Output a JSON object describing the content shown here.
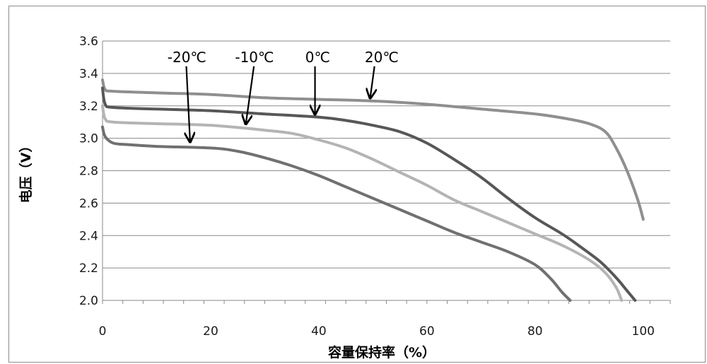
{
  "chart_data": {
    "type": "line",
    "title": "",
    "xlabel": "容量保持率（%）",
    "ylabel": "电压（V）",
    "xlim": [
      0,
      105
    ],
    "ylim": [
      2.0,
      3.6
    ],
    "x_ticks": [
      "0",
      "20",
      "40",
      "60",
      "80",
      "100"
    ],
    "y_ticks": [
      "2.0",
      "2.2",
      "2.4",
      "2.6",
      "2.8",
      "3.0",
      "3.2",
      "3.4",
      "3.6"
    ],
    "grid": "horizontal",
    "series": [
      {
        "name": "20℃",
        "color": "#8f8f8f",
        "points": [
          [
            0,
            3.36
          ],
          [
            0.5,
            3.3
          ],
          [
            2,
            3.29
          ],
          [
            10,
            3.28
          ],
          [
            20,
            3.27
          ],
          [
            30,
            3.25
          ],
          [
            40,
            3.24
          ],
          [
            50,
            3.23
          ],
          [
            60,
            3.21
          ],
          [
            70,
            3.18
          ],
          [
            80,
            3.15
          ],
          [
            86,
            3.12
          ],
          [
            90,
            3.09
          ],
          [
            93,
            3.04
          ],
          [
            95,
            2.94
          ],
          [
            97,
            2.8
          ],
          [
            99,
            2.62
          ],
          [
            100,
            2.5
          ]
        ]
      },
      {
        "name": "0℃",
        "color": "#575757",
        "points": [
          [
            0,
            3.31
          ],
          [
            0.5,
            3.21
          ],
          [
            2,
            3.19
          ],
          [
            10,
            3.18
          ],
          [
            20,
            3.17
          ],
          [
            30,
            3.15
          ],
          [
            40,
            3.13
          ],
          [
            45,
            3.11
          ],
          [
            50,
            3.08
          ],
          [
            55,
            3.04
          ],
          [
            60,
            2.97
          ],
          [
            65,
            2.87
          ],
          [
            70,
            2.76
          ],
          [
            75,
            2.63
          ],
          [
            80,
            2.51
          ],
          [
            85,
            2.41
          ],
          [
            88,
            2.34
          ],
          [
            92,
            2.24
          ],
          [
            95,
            2.14
          ],
          [
            97,
            2.06
          ],
          [
            98.5,
            2.0
          ]
        ]
      },
      {
        "name": "-10℃",
        "color": "#b4b4b4",
        "points": [
          [
            0,
            3.2
          ],
          [
            0.5,
            3.12
          ],
          [
            2,
            3.1
          ],
          [
            10,
            3.09
          ],
          [
            20,
            3.08
          ],
          [
            30,
            3.05
          ],
          [
            35,
            3.03
          ],
          [
            40,
            2.99
          ],
          [
            45,
            2.94
          ],
          [
            50,
            2.87
          ],
          [
            55,
            2.79
          ],
          [
            60,
            2.71
          ],
          [
            65,
            2.62
          ],
          [
            70,
            2.55
          ],
          [
            75,
            2.48
          ],
          [
            80,
            2.41
          ],
          [
            85,
            2.34
          ],
          [
            90,
            2.25
          ],
          [
            93,
            2.17
          ],
          [
            95,
            2.08
          ],
          [
            96,
            2.0
          ]
        ]
      },
      {
        "name": "-20℃",
        "color": "#707070",
        "points": [
          [
            0,
            3.07
          ],
          [
            0.5,
            3.01
          ],
          [
            2,
            2.97
          ],
          [
            5,
            2.96
          ],
          [
            10,
            2.95
          ],
          [
            20,
            2.94
          ],
          [
            25,
            2.92
          ],
          [
            30,
            2.88
          ],
          [
            35,
            2.83
          ],
          [
            40,
            2.77
          ],
          [
            45,
            2.7
          ],
          [
            50,
            2.63
          ],
          [
            55,
            2.56
          ],
          [
            60,
            2.49
          ],
          [
            65,
            2.42
          ],
          [
            70,
            2.36
          ],
          [
            75,
            2.3
          ],
          [
            80,
            2.22
          ],
          [
            83,
            2.13
          ],
          [
            85,
            2.05
          ],
          [
            86.5,
            2.0
          ]
        ]
      }
    ],
    "annotations": [
      {
        "text": "-20℃",
        "tx": 12,
        "ty": 3.47,
        "ax": 16.2,
        "ay": 2.96
      },
      {
        "text": "-10℃",
        "tx": 24.5,
        "ty": 3.47,
        "ax": 26.5,
        "ay": 3.07
      },
      {
        "text": "0℃",
        "tx": 37.5,
        "ty": 3.47,
        "ax": 39.3,
        "ay": 3.13
      },
      {
        "text": "20℃",
        "tx": 48.5,
        "ty": 3.47,
        "ax": 49.5,
        "ay": 3.23
      }
    ]
  }
}
